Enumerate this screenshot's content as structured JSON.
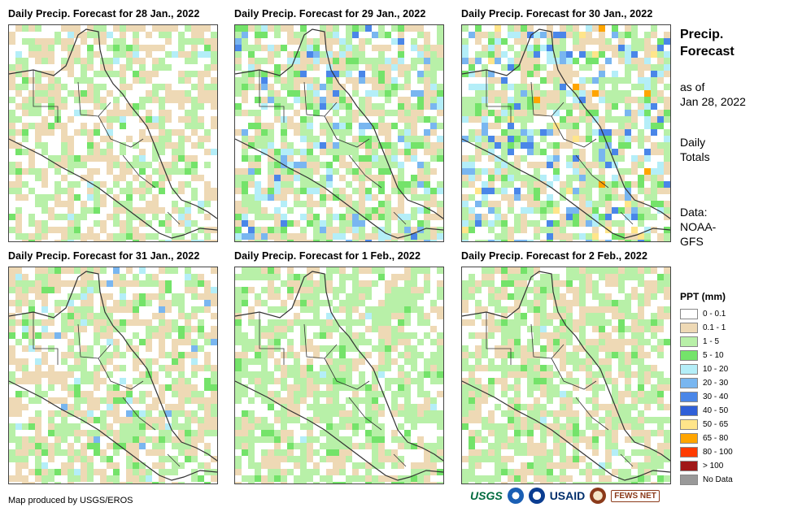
{
  "panels": [
    {
      "title": "Daily Precip. Forecast for 28 Jan., 2022"
    },
    {
      "title": "Daily Precip. Forecast for 29 Jan., 2022"
    },
    {
      "title": "Daily Precip. Forecast for 30 Jan., 2022"
    },
    {
      "title": "Daily Precip. Forecast for 31 Jan., 2022"
    },
    {
      "title": "Daily Precip. Forecast for 1 Feb., 2022"
    },
    {
      "title": "Daily Precip. Forecast for 2 Feb., 2022"
    }
  ],
  "sidebar": {
    "title_line1": "Precip.",
    "title_line2": "Forecast",
    "asof_line1": "as of",
    "asof_line2": "Jan 28, 2022",
    "totals_line1": "Daily",
    "totals_line2": "Totals",
    "data_line1": "Data:",
    "data_line2": "NOAA-",
    "data_line3": "GFS"
  },
  "legend": {
    "title": "PPT (mm)",
    "items": [
      {
        "label": "0 - 0.1",
        "color": "#ffffff"
      },
      {
        "label": "0.1 - 1",
        "color": "#eed9b5"
      },
      {
        "label": "1 - 5",
        "color": "#b8f0a8"
      },
      {
        "label": "5 - 10",
        "color": "#74e36a"
      },
      {
        "label": "10 - 20",
        "color": "#b4eef8"
      },
      {
        "label": "20 - 30",
        "color": "#79b6f0"
      },
      {
        "label": "30 - 40",
        "color": "#4a86e8"
      },
      {
        "label": "40 - 50",
        "color": "#2f5fd8"
      },
      {
        "label": "50 - 65",
        "color": "#ffe58a"
      },
      {
        "label": "65 - 80",
        "color": "#ffa500"
      },
      {
        "label": "80 - 100",
        "color": "#ff3b00"
      },
      {
        "label": "> 100",
        "color": "#a01818"
      },
      {
        "label": "No Data",
        "color": "#999999"
      }
    ]
  },
  "credit": "Map produced by USGS/EROS",
  "logos": {
    "usgs": "USGS",
    "usaid": "USAID",
    "fews": "FEWS NET"
  }
}
